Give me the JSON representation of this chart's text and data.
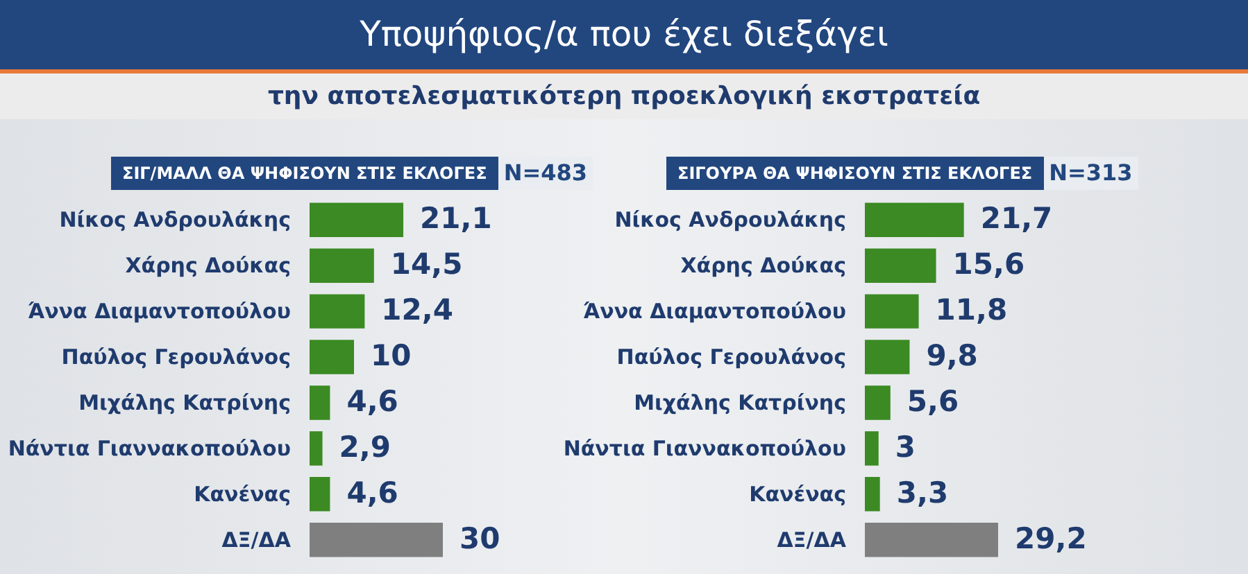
{
  "chart_data": [
    {
      "type": "bar",
      "orientation": "horizontal",
      "title": "Υποψήφιος/α που έχει διεξάγει",
      "subtitle": "την αποτελεσματικότερη προεκλογική εκστρατεία",
      "annotations": [
        "ΣΙΓ/ΜΑΛΛ ΘΑ ΨΗΦΙΣΟΥΝ ΣΤΙΣ ΕΚΛΟΓΕΣ",
        "N=483"
      ],
      "categories": [
        "Νίκος Ανδρουλάκης",
        "Χάρης Δούκας",
        "Άννα Διαμαντοπούλου",
        "Παύλος Γερουλάνος",
        "Μιχάλης Κατρίνης",
        "Νάντια Γιαννακοπούλου",
        "Κανένας",
        "ΔΞ/ΔΑ"
      ],
      "values": [
        21.1,
        14.5,
        12.4,
        10,
        4.6,
        2.9,
        4.6,
        30
      ],
      "colors": [
        "#3b8a23",
        "#3b8a23",
        "#3b8a23",
        "#3b8a23",
        "#3b8a23",
        "#3b8a23",
        "#3b8a23",
        "#7f7f7f"
      ],
      "value_labels": [
        "21,1",
        "14,5",
        "12,4",
        "10",
        "4,6",
        "2,9",
        "4,6",
        "30"
      ]
    },
    {
      "type": "bar",
      "orientation": "horizontal",
      "annotations": [
        "ΣΙΓΟΥΡΑ ΘΑ ΨΗΦΙΣΟΥΝ ΣΤΙΣ ΕΚΛΟΓΕΣ",
        "N=313"
      ],
      "categories": [
        "Νίκος Ανδρουλάκης",
        "Χάρης Δούκας",
        "Άννα Διαμαντοπούλου",
        "Παύλος Γερουλάνος",
        "Μιχάλης Κατρίνης",
        "Νάντια Γιαννακοπούλου",
        "Κανένας",
        "ΔΞ/ΔΑ"
      ],
      "values": [
        21.7,
        15.6,
        11.8,
        9.8,
        5.6,
        3,
        3.3,
        29.2
      ],
      "colors": [
        "#3b8a23",
        "#3b8a23",
        "#3b8a23",
        "#3b8a23",
        "#3b8a23",
        "#3b8a23",
        "#3b8a23",
        "#7f7f7f"
      ],
      "value_labels": [
        "21,7",
        "15,6",
        "11,8",
        "9,8",
        "5,6",
        "3",
        "3,3",
        "29,2"
      ]
    }
  ]
}
